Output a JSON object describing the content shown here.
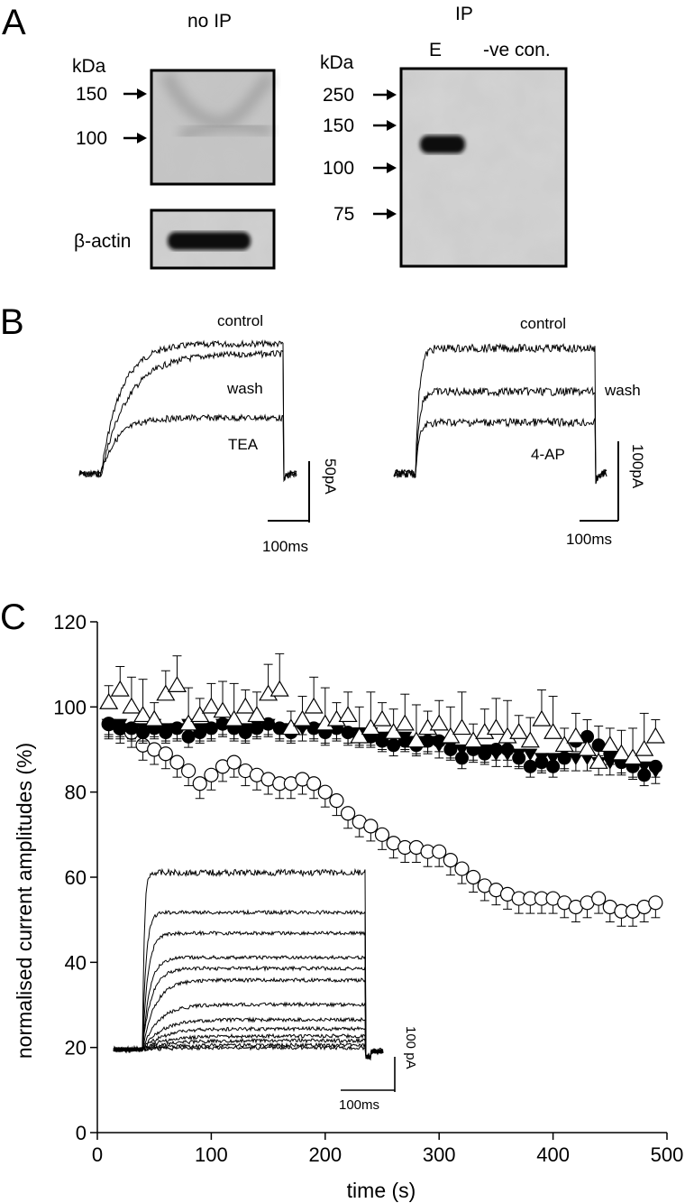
{
  "panels": {
    "a": {
      "letter": "A",
      "no_ip": {
        "title": "no IP",
        "kda_label": "kDa",
        "markers": [
          "150",
          "100"
        ],
        "actin_label": "β-actin"
      },
      "ip": {
        "title": "IP",
        "kda_label": "kDa",
        "lanes": [
          "E",
          "-ve con."
        ],
        "markers": [
          "250",
          "150",
          "100",
          "75"
        ]
      }
    },
    "b": {
      "letter": "B",
      "left": {
        "labels": [
          "control",
          "wash",
          "TEA"
        ],
        "scale_current": "50pA",
        "scale_time": "100ms"
      },
      "right": {
        "labels": [
          "control",
          "wash",
          "4-AP"
        ],
        "scale_current": "100pA",
        "scale_time": "100ms"
      }
    },
    "c": {
      "letter": "C",
      "inset": {
        "scale_current": "100 pA",
        "scale_time": "100ms"
      }
    }
  },
  "chart_data": {
    "type": "scatter",
    "title": "",
    "xlabel": "time (s)",
    "ylabel": "normalised current amplitudes (%)",
    "xlim": [
      0,
      500
    ],
    "ylim": [
      0,
      120
    ],
    "xticks": [
      "0",
      "100",
      "200",
      "300",
      "400",
      "500"
    ],
    "yticks": [
      "0",
      "20",
      "40",
      "60",
      "80",
      "100",
      "120"
    ],
    "grid": false,
    "legend": "none",
    "series": [
      {
        "marker": "open-circle",
        "x": [
          10,
          20,
          30,
          40,
          50,
          60,
          70,
          80,
          90,
          100,
          110,
          120,
          130,
          140,
          150,
          160,
          170,
          180,
          190,
          200,
          210,
          220,
          230,
          240,
          250,
          260,
          270,
          280,
          290,
          300,
          310,
          320,
          330,
          340,
          350,
          360,
          370,
          380,
          390,
          400,
          410,
          420,
          430,
          440,
          450,
          460,
          470,
          480,
          490
        ],
        "y": [
          96,
          95,
          94,
          91,
          90,
          89,
          87,
          85,
          82,
          84,
          86,
          87,
          85,
          84,
          83,
          82,
          82,
          83,
          82,
          80,
          78,
          75,
          73,
          72,
          70,
          68,
          67,
          67,
          66,
          66,
          64,
          62,
          60,
          58,
          57,
          56,
          55,
          55,
          55,
          55,
          54,
          53,
          54,
          55,
          53,
          52,
          52,
          53,
          54
        ]
      },
      {
        "marker": "filled-circle",
        "x": [
          10,
          20,
          30,
          40,
          50,
          60,
          70,
          80,
          90,
          100,
          110,
          120,
          130,
          140,
          150,
          160,
          170,
          180,
          190,
          200,
          210,
          220,
          230,
          240,
          250,
          260,
          270,
          280,
          290,
          300,
          310,
          320,
          330,
          340,
          350,
          360,
          370,
          380,
          390,
          400,
          410,
          420,
          430,
          440,
          450,
          460,
          470,
          480,
          490
        ],
        "y": [
          96,
          95,
          95,
          94,
          95,
          94,
          95,
          93,
          94,
          95,
          96,
          95,
          94,
          95,
          96,
          95,
          94,
          96,
          95,
          94,
          95,
          94,
          93,
          93,
          92,
          91,
          92,
          91,
          92,
          92,
          90,
          88,
          90,
          89,
          90,
          90,
          88,
          86,
          87,
          86,
          88,
          92,
          93,
          91,
          89,
          87,
          86,
          84,
          86
        ]
      },
      {
        "marker": "filled-triangle-down",
        "x": [
          10,
          20,
          30,
          40,
          50,
          60,
          70,
          80,
          90,
          100,
          110,
          120,
          130,
          140,
          150,
          160,
          170,
          180,
          190,
          200,
          210,
          220,
          230,
          240,
          250,
          260,
          270,
          280,
          290,
          300,
          310,
          320,
          330,
          340,
          350,
          360,
          370,
          380,
          390,
          400,
          410,
          420,
          430,
          440,
          450,
          460,
          470,
          480,
          490
        ],
        "y": [
          96,
          96,
          95,
          95,
          96,
          95,
          95,
          96,
          95,
          95,
          96,
          95,
          95,
          96,
          96,
          95,
          95,
          95,
          95,
          94,
          95,
          94,
          94,
          94,
          93,
          93,
          93,
          92,
          92,
          91,
          91,
          90,
          90,
          90,
          89,
          89,
          89,
          89,
          88,
          88,
          88,
          88,
          88,
          87,
          87,
          87,
          86,
          86,
          85
        ]
      },
      {
        "marker": "open-triangle-up",
        "x": [
          10,
          20,
          30,
          40,
          50,
          60,
          70,
          80,
          90,
          100,
          110,
          120,
          130,
          140,
          150,
          160,
          170,
          180,
          190,
          200,
          210,
          220,
          230,
          240,
          250,
          260,
          270,
          280,
          290,
          300,
          310,
          320,
          330,
          340,
          350,
          360,
          370,
          380,
          390,
          400,
          410,
          420,
          430,
          440,
          450,
          460,
          470,
          480,
          490
        ],
        "y": [
          101,
          104,
          100,
          98,
          97,
          103,
          105,
          96,
          98,
          100,
          99,
          97,
          100,
          98,
          103,
          104,
          95,
          97,
          100,
          96,
          97,
          98,
          93,
          95,
          97,
          94,
          96,
          92,
          95,
          96,
          93,
          95,
          92,
          94,
          95,
          93,
          94,
          92,
          97,
          94,
          91,
          93,
          90,
          87,
          91,
          89,
          88,
          90,
          93
        ]
      }
    ]
  }
}
